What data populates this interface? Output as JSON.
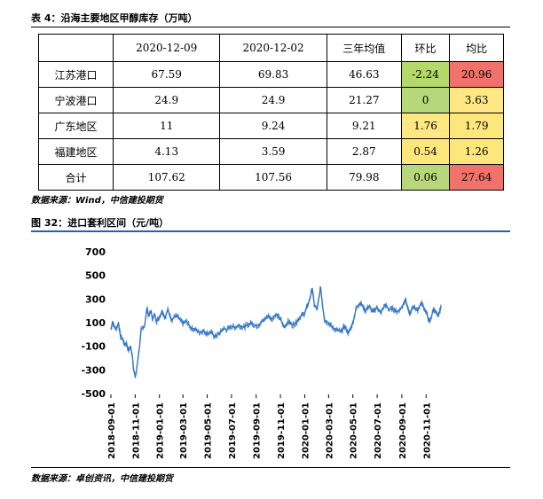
{
  "table": {
    "caption": "表 4：沿海主要地区甲醇库存（万吨）",
    "headers": [
      "",
      "2020-12-09",
      "2020-12-02",
      "三年均值",
      "环比",
      "均比"
    ],
    "rows": [
      {
        "region": "江苏港口",
        "v1": "67.59",
        "v2": "69.83",
        "avg": "46.63",
        "hb": "-2.24",
        "jb": "20.96"
      },
      {
        "region": "宁波港口",
        "v1": "24.9",
        "v2": "24.9",
        "avg": "21.27",
        "hb": "0",
        "jb": "3.63"
      },
      {
        "region": "广东地区",
        "v1": "11",
        "v2": "9.24",
        "avg": "9.21",
        "hb": "1.76",
        "jb": "1.79"
      },
      {
        "region": "福建地区",
        "v1": "4.13",
        "v2": "3.59",
        "avg": "2.87",
        "hb": "0.54",
        "jb": "1.26"
      },
      {
        "region": "合计",
        "v1": "107.62",
        "v2": "107.56",
        "avg": "79.98",
        "hb": "0.06",
        "jb": "27.64"
      }
    ],
    "source": "数据来源：Wind，中信建投期货"
  },
  "figure": {
    "caption": "图 32：进口套利区间（元/吨）",
    "source": "数据来源：卓创资讯，中信建投期货"
  },
  "colors": {
    "line": "#2f73c6",
    "hb_cells": [
      "#b5d86a",
      "#b7d77a",
      "#ffe783",
      "#fde77d",
      "#b7d77a"
    ],
    "jb_cells": [
      "#f0726b",
      "#ffe783",
      "#fde77d",
      "#fde77d",
      "#f0726b"
    ]
  },
  "chart_data": {
    "type": "line",
    "ylim": [
      -500,
      700
    ],
    "yticks": [
      700,
      500,
      300,
      100,
      -100,
      -300,
      -500
    ],
    "xticks": [
      "2018-09-01",
      "2018-11-01",
      "2019-01-01",
      "2019-03-01",
      "2019-05-01",
      "2019-07-01",
      "2019-09-01",
      "2019-11-01",
      "2020-01-01",
      "2020-03-01",
      "2020-05-01",
      "2020-07-01",
      "2020-09-01",
      "2020-11-01"
    ],
    "x_start": "2018-09-01",
    "series": [
      {
        "x": [
          "2018-09-01",
          "2018-09-05",
          "2018-09-10",
          "2018-09-15",
          "2018-09-20",
          "2018-09-25",
          "2018-10-01",
          "2018-10-05",
          "2018-10-10",
          "2018-10-15",
          "2018-10-20",
          "2018-10-25",
          "2018-10-28",
          "2018-11-01",
          "2018-11-04",
          "2018-11-08",
          "2018-11-12",
          "2018-11-16",
          "2018-11-20",
          "2018-11-25",
          "2018-12-01",
          "2018-12-05",
          "2018-12-10",
          "2018-12-15",
          "2018-12-20",
          "2018-12-25",
          "2019-01-01",
          "2019-01-08",
          "2019-01-15",
          "2019-01-22",
          "2019-02-01",
          "2019-02-10",
          "2019-02-20",
          "2019-03-01",
          "2019-03-10",
          "2019-03-20",
          "2019-04-01",
          "2019-04-10",
          "2019-04-20",
          "2019-05-01",
          "2019-05-10",
          "2019-05-20",
          "2019-06-01",
          "2019-06-10",
          "2019-06-20",
          "2019-07-01",
          "2019-07-10",
          "2019-07-20",
          "2019-08-01",
          "2019-08-10",
          "2019-08-20",
          "2019-09-01",
          "2019-09-10",
          "2019-09-20",
          "2019-10-01",
          "2019-10-10",
          "2019-10-20",
          "2019-11-01",
          "2019-11-10",
          "2019-11-20",
          "2019-12-01",
          "2019-12-10",
          "2019-12-20",
          "2020-01-01",
          "2020-01-05",
          "2020-01-10",
          "2020-01-15",
          "2020-01-20",
          "2020-01-25",
          "2020-02-01",
          "2020-02-05",
          "2020-02-10",
          "2020-02-15",
          "2020-02-20",
          "2020-03-01",
          "2020-03-10",
          "2020-03-20",
          "2020-04-01",
          "2020-04-10",
          "2020-04-20",
          "2020-05-01",
          "2020-05-10",
          "2020-05-20",
          "2020-06-01",
          "2020-06-10",
          "2020-06-20",
          "2020-07-01",
          "2020-07-10",
          "2020-07-20",
          "2020-08-01",
          "2020-08-10",
          "2020-08-20",
          "2020-09-01",
          "2020-09-10",
          "2020-09-20",
          "2020-10-01",
          "2020-10-10",
          "2020-10-20",
          "2020-11-01",
          "2020-11-10",
          "2020-11-20",
          "2020-12-01",
          "2020-12-09"
        ],
        "y": [
          40,
          110,
          60,
          50,
          100,
          -20,
          -40,
          -90,
          -70,
          -140,
          -100,
          -180,
          -300,
          -360,
          -320,
          -200,
          -100,
          40,
          60,
          80,
          230,
          150,
          200,
          130,
          170,
          110,
          150,
          200,
          140,
          210,
          120,
          160,
          130,
          90,
          110,
          60,
          40,
          20,
          30,
          10,
          20,
          -20,
          10,
          50,
          40,
          70,
          60,
          80,
          60,
          80,
          100,
          70,
          90,
          120,
          160,
          130,
          170,
          130,
          60,
          110,
          80,
          100,
          150,
          180,
          220,
          260,
          320,
          390,
          250,
          210,
          300,
          400,
          240,
          120,
          100,
          60,
          40,
          20,
          70,
          10,
          100,
          230,
          270,
          200,
          240,
          190,
          230,
          180,
          250,
          210,
          220,
          190,
          230,
          300,
          170,
          240,
          200,
          270,
          190,
          100,
          220,
          150,
          240
        ]
      }
    ]
  }
}
